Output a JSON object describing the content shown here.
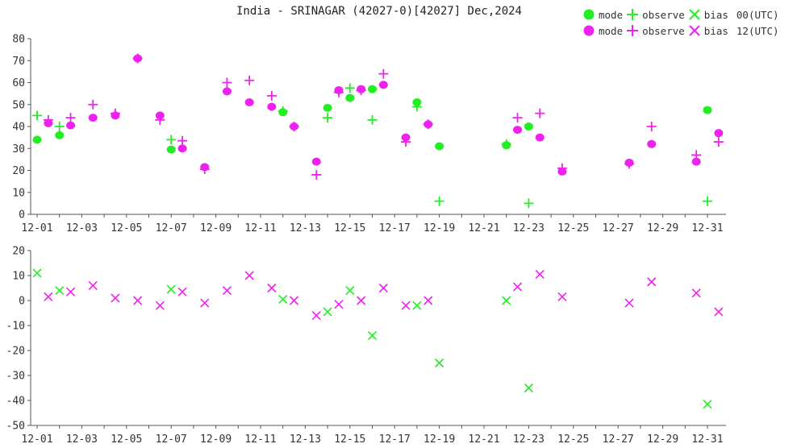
{
  "chart_title": "India - SRINAGAR (42027-0)[42027] Dec,2024",
  "legend": {
    "rows": [
      {
        "mode": "mode",
        "observe": "observe",
        "bias": "bias",
        "utc": "00(UTC)",
        "color": "#22ee22"
      },
      {
        "mode": "mode",
        "observe": "observe",
        "bias": "bias",
        "utc": "12(UTC)",
        "color": "#ee22ee"
      }
    ]
  },
  "colors": {
    "green": "#22ee22",
    "magenta": "#ee22ee",
    "axis": "#555555"
  },
  "chart_data": [
    {
      "type": "scatter",
      "ylim": [
        0,
        80
      ],
      "yticks": [
        0,
        10,
        20,
        30,
        40,
        50,
        60,
        70,
        80
      ],
      "xlim": [
        1,
        31.5
      ],
      "xticks": [
        "12-01",
        "12-03",
        "12-05",
        "12-07",
        "12-09",
        "12-11",
        "12-13",
        "12-15",
        "12-17",
        "12-19",
        "12-21",
        "12-23",
        "12-25",
        "12-27",
        "12-29",
        "12-31"
      ],
      "series": [
        {
          "name": "mode 00(UTC)",
          "marker": "circle",
          "color": "#22ee22",
          "points": [
            [
              1,
              34
            ],
            [
              2,
              36
            ],
            [
              7,
              29.5
            ],
            [
              12,
              46.5
            ],
            [
              14,
              48.5
            ],
            [
              15,
              53
            ],
            [
              16,
              57
            ],
            [
              18,
              51
            ],
            [
              19,
              31
            ],
            [
              22,
              31.5
            ],
            [
              23,
              40
            ],
            [
              31,
              47.5
            ]
          ]
        },
        {
          "name": "observe 00(UTC)",
          "marker": "plus",
          "color": "#22ee22",
          "points": [
            [
              1,
              45
            ],
            [
              2,
              40
            ],
            [
              7,
              34
            ],
            [
              12,
              47
            ],
            [
              14,
              44
            ],
            [
              15,
              57.5
            ],
            [
              16,
              43
            ],
            [
              18,
              49
            ],
            [
              19,
              6
            ],
            [
              22,
              32
            ],
            [
              23,
              5
            ],
            [
              31,
              6
            ]
          ]
        },
        {
          "name": "mode 12(UTC)",
          "marker": "circle",
          "color": "#ee22ee",
          "points": [
            [
              1.5,
              41.5
            ],
            [
              2.5,
              40.5
            ],
            [
              3.5,
              44
            ],
            [
              4.5,
              45
            ],
            [
              5.5,
              71
            ],
            [
              6.5,
              45
            ],
            [
              7.5,
              30
            ],
            [
              8.5,
              21.5
            ],
            [
              9.5,
              56
            ],
            [
              10.5,
              51
            ],
            [
              11.5,
              49
            ],
            [
              12.5,
              40
            ],
            [
              13.5,
              24
            ],
            [
              14.5,
              56.5
            ],
            [
              15.5,
              57
            ],
            [
              16.5,
              59
            ],
            [
              17.5,
              35
            ],
            [
              18.5,
              41
            ],
            [
              22.5,
              38.5
            ],
            [
              23.5,
              35
            ],
            [
              24.5,
              19.5
            ],
            [
              27.5,
              23.5
            ],
            [
              28.5,
              32
            ],
            [
              30.5,
              24
            ],
            [
              31.5,
              37
            ]
          ]
        },
        {
          "name": "observe 12(UTC)",
          "marker": "plus",
          "color": "#ee22ee",
          "points": [
            [
              1.5,
              43
            ],
            [
              2.5,
              44
            ],
            [
              3.5,
              50
            ],
            [
              4.5,
              46
            ],
            [
              5.5,
              71
            ],
            [
              6.5,
              43
            ],
            [
              7.5,
              33.5
            ],
            [
              8.5,
              20.5
            ],
            [
              9.5,
              60
            ],
            [
              10.5,
              61
            ],
            [
              11.5,
              54
            ],
            [
              12.5,
              40
            ],
            [
              13.5,
              18
            ],
            [
              14.5,
              55.5
            ],
            [
              15.5,
              56.5
            ],
            [
              16.5,
              64
            ],
            [
              17.5,
              33
            ],
            [
              18.5,
              41
            ],
            [
              22.5,
              44
            ],
            [
              23.5,
              46
            ],
            [
              24.5,
              21
            ],
            [
              27.5,
              23
            ],
            [
              28.5,
              40
            ],
            [
              30.5,
              27
            ],
            [
              31.5,
              33
            ]
          ]
        }
      ]
    },
    {
      "type": "scatter",
      "ylim": [
        -50,
        20
      ],
      "yticks": [
        -50,
        -40,
        -30,
        -20,
        -10,
        0,
        10,
        20
      ],
      "xlim": [
        1,
        31.5
      ],
      "xticks": [
        "12-01",
        "12-03",
        "12-05",
        "12-07",
        "12-09",
        "12-11",
        "12-13",
        "12-15",
        "12-17",
        "12-19",
        "12-21",
        "12-23",
        "12-25",
        "12-27",
        "12-29",
        "12-31"
      ],
      "series": [
        {
          "name": "bias 00(UTC)",
          "marker": "x",
          "color": "#22ee22",
          "points": [
            [
              1,
              11
            ],
            [
              2,
              4
            ],
            [
              7,
              4.5
            ],
            [
              12,
              0.5
            ],
            [
              14,
              -4.5
            ],
            [
              15,
              4
            ],
            [
              16,
              -14
            ],
            [
              18,
              -2
            ],
            [
              19,
              -25
            ],
            [
              22,
              0
            ],
            [
              23,
              -35
            ],
            [
              31,
              -41.5
            ]
          ]
        },
        {
          "name": "bias 12(UTC)",
          "marker": "x",
          "color": "#ee22ee",
          "points": [
            [
              1.5,
              1.5
            ],
            [
              2.5,
              3.5
            ],
            [
              3.5,
              6
            ],
            [
              4.5,
              1
            ],
            [
              5.5,
              0
            ],
            [
              6.5,
              -2
            ],
            [
              7.5,
              3.5
            ],
            [
              8.5,
              -1
            ],
            [
              9.5,
              4
            ],
            [
              10.5,
              10
            ],
            [
              11.5,
              5
            ],
            [
              12.5,
              0
            ],
            [
              13.5,
              -6
            ],
            [
              14.5,
              -1.5
            ],
            [
              15.5,
              0
            ],
            [
              16.5,
              5
            ],
            [
              17.5,
              -2
            ],
            [
              18.5,
              0
            ],
            [
              22.5,
              5.5
            ],
            [
              23.5,
              10.5
            ],
            [
              24.5,
              1.5
            ],
            [
              27.5,
              -1
            ],
            [
              28.5,
              7.5
            ],
            [
              30.5,
              3
            ],
            [
              31.5,
              -4.5
            ]
          ]
        }
      ]
    }
  ]
}
